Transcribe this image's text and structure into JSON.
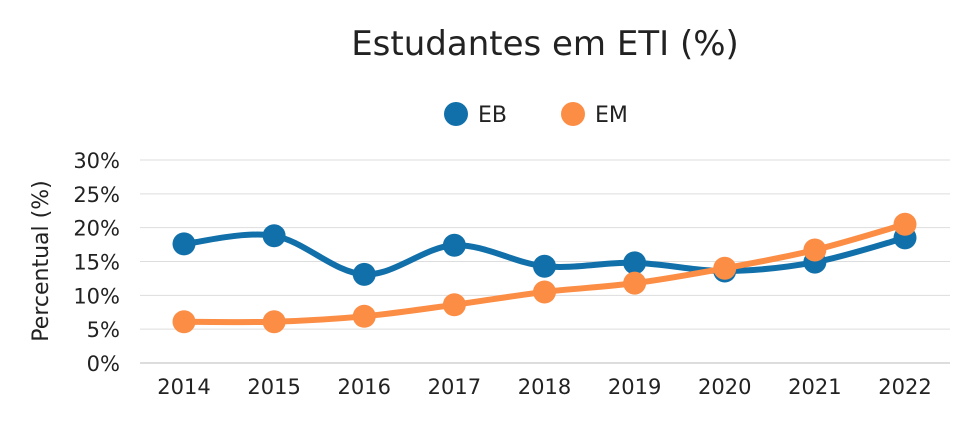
{
  "chart_data": {
    "type": "line",
    "title": "Estudantes em ETI (%)",
    "xlabel": "",
    "ylabel": "Percentual (%)",
    "categories": [
      "2014",
      "2015",
      "2016",
      "2017",
      "2018",
      "2019",
      "2020",
      "2021",
      "2022"
    ],
    "ylim": [
      0,
      30
    ],
    "yticks": [
      "0%",
      "5%",
      "10%",
      "15%",
      "20%",
      "25%",
      "30%"
    ],
    "grid": true,
    "legend": "top-center",
    "smooth": true,
    "series": [
      {
        "name": "EB",
        "color": "#1170aa",
        "values": [
          17.6,
          18.8,
          13.1,
          17.4,
          14.3,
          14.8,
          13.6,
          14.9,
          18.5
        ]
      },
      {
        "name": "EM",
        "color": "#fc8d45",
        "values": [
          6.1,
          6.1,
          6.9,
          8.6,
          10.5,
          11.8,
          14.0,
          16.7,
          20.5
        ]
      }
    ]
  }
}
